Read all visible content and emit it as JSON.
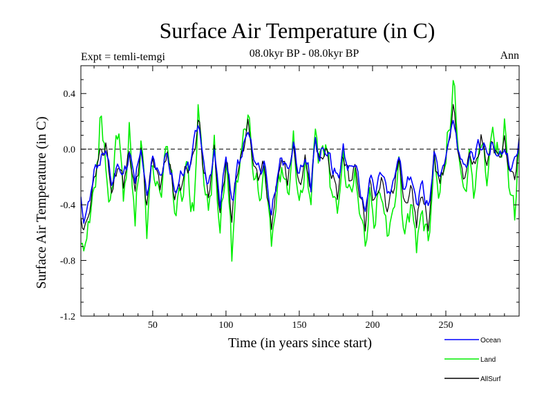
{
  "chart_data": {
    "type": "line",
    "title": "Surface Air Temperature (in C)",
    "subtitle": "08.0kyr BP - 08.0kyr BP",
    "expt_label": "Expt = temli-temgi",
    "season_label": "Ann",
    "xlabel": "Time (in years since start)",
    "ylabel": "Surface Air Temperature (in C)",
    "xlim": [
      1,
      300
    ],
    "ylim": [
      -1.2,
      0.6
    ],
    "xticks": [
      50,
      100,
      150,
      200,
      250
    ],
    "xtick_labels": [
      "50",
      "100",
      "150",
      "200",
      "250"
    ],
    "yticks": [
      -1.2,
      -0.8,
      -0.4,
      0.0,
      0.4
    ],
    "ytick_labels": [
      "-1.2",
      "-0.8",
      "-0.4",
      "0.0",
      "0.4"
    ],
    "zero_line": 0.0,
    "legend_position": "bottom-right, below plot",
    "series": [
      {
        "name": "Ocean",
        "color": "#0000ff",
        "keyframes": [
          [
            1,
            -0.38
          ],
          [
            3,
            -0.52
          ],
          [
            6,
            -0.42
          ],
          [
            10,
            -0.18
          ],
          [
            14,
            -0.08
          ],
          [
            18,
            0.0
          ],
          [
            22,
            -0.25
          ],
          [
            26,
            -0.12
          ],
          [
            30,
            -0.2
          ],
          [
            34,
            -0.02
          ],
          [
            38,
            -0.22
          ],
          [
            42,
            0.0
          ],
          [
            46,
            -0.35
          ],
          [
            50,
            -0.05
          ],
          [
            55,
            -0.2
          ],
          [
            60,
            -0.02
          ],
          [
            65,
            -0.3
          ],
          [
            70,
            -0.18
          ],
          [
            75,
            -0.12
          ],
          [
            78,
            0.05
          ],
          [
            81,
            0.2
          ],
          [
            84,
            -0.05
          ],
          [
            88,
            -0.28
          ],
          [
            92,
            -0.02
          ],
          [
            96,
            -0.4
          ],
          [
            100,
            -0.05
          ],
          [
            104,
            -0.38
          ],
          [
            108,
            -0.12
          ],
          [
            112,
            0.0
          ],
          [
            115,
            0.18
          ],
          [
            118,
            -0.05
          ],
          [
            122,
            -0.15
          ],
          [
            126,
            -0.1
          ],
          [
            129,
            -0.32
          ],
          [
            131,
            -0.5
          ],
          [
            134,
            -0.25
          ],
          [
            138,
            -0.05
          ],
          [
            142,
            -0.15
          ],
          [
            146,
            0.02
          ],
          [
            150,
            -0.2
          ],
          [
            154,
            -0.05
          ],
          [
            158,
            -0.25
          ],
          [
            161,
            0.08
          ],
          [
            164,
            -0.05
          ],
          [
            168,
            0.0
          ],
          [
            172,
            -0.1
          ],
          [
            176,
            -0.22
          ],
          [
            180,
            -0.02
          ],
          [
            184,
            -0.15
          ],
          [
            188,
            -0.1
          ],
          [
            192,
            -0.3
          ],
          [
            195,
            -0.45
          ],
          [
            198,
            -0.2
          ],
          [
            202,
            -0.3
          ],
          [
            206,
            -0.15
          ],
          [
            210,
            -0.32
          ],
          [
            214,
            -0.25
          ],
          [
            218,
            -0.05
          ],
          [
            222,
            -0.3
          ],
          [
            226,
            -0.2
          ],
          [
            230,
            -0.4
          ],
          [
            234,
            -0.25
          ],
          [
            238,
            -0.45
          ],
          [
            242,
            -0.05
          ],
          [
            246,
            -0.2
          ],
          [
            250,
            -0.05
          ],
          [
            253,
            0.1
          ],
          [
            255,
            0.22
          ],
          [
            258,
            0.0
          ],
          [
            262,
            -0.12
          ],
          [
            266,
            -0.05
          ],
          [
            270,
            -0.02
          ],
          [
            274,
            0.05
          ],
          [
            278,
            -0.03
          ],
          [
            282,
            0.02
          ],
          [
            286,
            -0.05
          ],
          [
            290,
            0.0
          ],
          [
            294,
            -0.15
          ],
          [
            298,
            -0.05
          ],
          [
            300,
            0.05
          ]
        ],
        "amp": 0.06
      },
      {
        "name": "Land",
        "color": "#00ee00",
        "keyframes": [
          [
            1,
            -0.75
          ],
          [
            3,
            -0.65
          ],
          [
            5,
            -0.7
          ],
          [
            8,
            -0.35
          ],
          [
            11,
            -0.25
          ],
          [
            14,
            0.18
          ],
          [
            17,
            0.05
          ],
          [
            20,
            -0.45
          ],
          [
            24,
            -0.1
          ],
          [
            27,
            0.18
          ],
          [
            30,
            -0.4
          ],
          [
            34,
            0.08
          ],
          [
            38,
            -0.5
          ],
          [
            42,
            0.05
          ],
          [
            46,
            -0.55
          ],
          [
            50,
            -0.1
          ],
          [
            55,
            -0.35
          ],
          [
            60,
            0.05
          ],
          [
            65,
            -0.45
          ],
          [
            70,
            -0.3
          ],
          [
            74,
            -0.15
          ],
          [
            78,
            -0.55
          ],
          [
            81,
            0.3
          ],
          [
            84,
            -0.1
          ],
          [
            88,
            -0.5
          ],
          [
            92,
            0.02
          ],
          [
            96,
            -0.6
          ],
          [
            100,
            -0.1
          ],
          [
            104,
            -0.7
          ],
          [
            108,
            -0.2
          ],
          [
            112,
            0.05
          ],
          [
            115,
            0.3
          ],
          [
            118,
            -0.1
          ],
          [
            122,
            -0.3
          ],
          [
            126,
            -0.2
          ],
          [
            129,
            -0.4
          ],
          [
            131,
            -0.72
          ],
          [
            134,
            -0.4
          ],
          [
            138,
            -0.1
          ],
          [
            142,
            -0.35
          ],
          [
            146,
            0.05
          ],
          [
            150,
            -0.45
          ],
          [
            154,
            -0.1
          ],
          [
            158,
            -0.4
          ],
          [
            161,
            0.18
          ],
          [
            164,
            -0.1
          ],
          [
            168,
            0.05
          ],
          [
            172,
            -0.3
          ],
          [
            176,
            -0.45
          ],
          [
            180,
            -0.05
          ],
          [
            184,
            -0.35
          ],
          [
            188,
            -0.2
          ],
          [
            192,
            -0.5
          ],
          [
            195,
            -0.68
          ],
          [
            198,
            -0.35
          ],
          [
            202,
            -0.5
          ],
          [
            206,
            -0.3
          ],
          [
            210,
            -0.62
          ],
          [
            214,
            -0.45
          ],
          [
            218,
            -0.1
          ],
          [
            222,
            -0.6
          ],
          [
            226,
            -0.35
          ],
          [
            230,
            -0.68
          ],
          [
            234,
            -0.45
          ],
          [
            238,
            -0.72
          ],
          [
            242,
            -0.1
          ],
          [
            246,
            -0.35
          ],
          [
            250,
            -0.05
          ],
          [
            253,
            0.2
          ],
          [
            255,
            0.52
          ],
          [
            258,
            0.02
          ],
          [
            262,
            -0.3
          ],
          [
            266,
            -0.1
          ],
          [
            270,
            -0.3
          ],
          [
            274,
            0.1
          ],
          [
            278,
            -0.25
          ],
          [
            282,
            0.15
          ],
          [
            286,
            -0.1
          ],
          [
            290,
            0.12
          ],
          [
            294,
            -0.3
          ],
          [
            297,
            -0.42
          ],
          [
            300,
            0.05
          ]
        ],
        "amp": 0.12
      },
      {
        "name": "AllSurf",
        "color": "#000000",
        "keyframes": [
          [
            1,
            -0.5
          ],
          [
            3,
            -0.57
          ],
          [
            6,
            -0.5
          ],
          [
            10,
            -0.22
          ],
          [
            14,
            0.0
          ],
          [
            18,
            0.02
          ],
          [
            22,
            -0.32
          ],
          [
            26,
            -0.12
          ],
          [
            30,
            -0.25
          ],
          [
            34,
            -0.02
          ],
          [
            38,
            -0.3
          ],
          [
            42,
            0.0
          ],
          [
            46,
            -0.4
          ],
          [
            50,
            -0.06
          ],
          [
            55,
            -0.25
          ],
          [
            60,
            -0.0
          ],
          [
            65,
            -0.35
          ],
          [
            70,
            -0.22
          ],
          [
            75,
            -0.14
          ],
          [
            78,
            -0.05
          ],
          [
            81,
            0.22
          ],
          [
            84,
            -0.06
          ],
          [
            88,
            -0.34
          ],
          [
            92,
            -0.02
          ],
          [
            96,
            -0.47
          ],
          [
            100,
            -0.06
          ],
          [
            104,
            -0.48
          ],
          [
            108,
            -0.14
          ],
          [
            112,
            0.01
          ],
          [
            115,
            0.2
          ],
          [
            118,
            -0.06
          ],
          [
            122,
            -0.2
          ],
          [
            126,
            -0.13
          ],
          [
            129,
            -0.36
          ],
          [
            131,
            -0.58
          ],
          [
            134,
            -0.3
          ],
          [
            138,
            -0.06
          ],
          [
            142,
            -0.22
          ],
          [
            146,
            0.03
          ],
          [
            150,
            -0.28
          ],
          [
            154,
            -0.07
          ],
          [
            158,
            -0.3
          ],
          [
            161,
            0.1
          ],
          [
            164,
            -0.07
          ],
          [
            168,
            0.01
          ],
          [
            172,
            -0.16
          ],
          [
            176,
            -0.3
          ],
          [
            180,
            -0.03
          ],
          [
            184,
            -0.22
          ],
          [
            188,
            -0.13
          ],
          [
            192,
            -0.38
          ],
          [
            195,
            -0.53
          ],
          [
            198,
            -0.25
          ],
          [
            202,
            -0.38
          ],
          [
            206,
            -0.2
          ],
          [
            210,
            -0.44
          ],
          [
            214,
            -0.32
          ],
          [
            218,
            -0.07
          ],
          [
            222,
            -0.42
          ],
          [
            226,
            -0.25
          ],
          [
            230,
            -0.52
          ],
          [
            234,
            -0.32
          ],
          [
            238,
            -0.57
          ],
          [
            242,
            -0.06
          ],
          [
            246,
            -0.26
          ],
          [
            250,
            -0.05
          ],
          [
            253,
            0.14
          ],
          [
            255,
            0.3
          ],
          [
            258,
            0.01
          ],
          [
            262,
            -0.18
          ],
          [
            266,
            -0.07
          ],
          [
            270,
            -0.12
          ],
          [
            274,
            0.07
          ],
          [
            278,
            -0.1
          ],
          [
            282,
            0.06
          ],
          [
            286,
            -0.07
          ],
          [
            290,
            0.04
          ],
          [
            294,
            -0.2
          ],
          [
            298,
            -0.18
          ],
          [
            300,
            0.05
          ]
        ],
        "amp": 0.07
      }
    ]
  }
}
